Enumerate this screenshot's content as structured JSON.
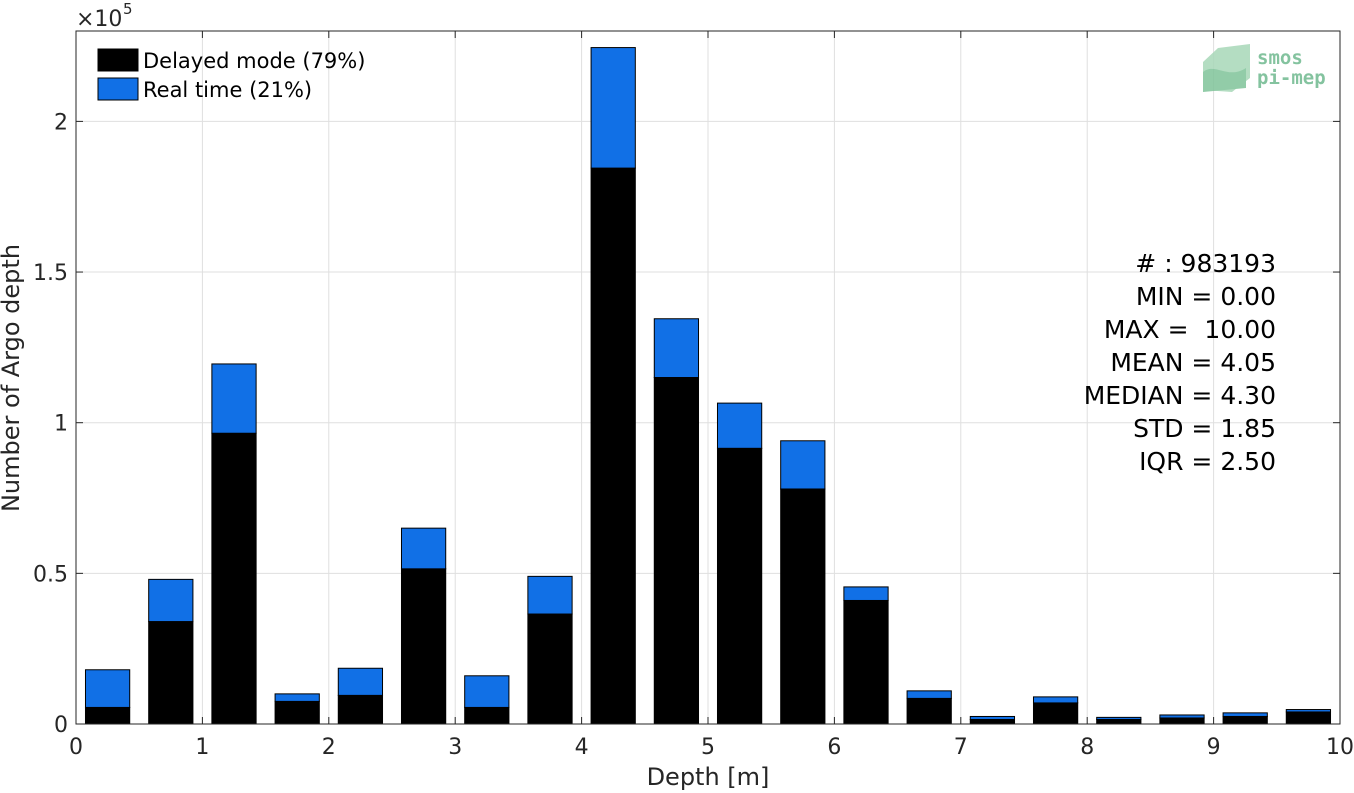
{
  "chart_data": {
    "type": "bar",
    "stacked": true,
    "x": [
      0.25,
      0.75,
      1.25,
      1.75,
      2.25,
      2.75,
      3.25,
      3.75,
      4.25,
      4.75,
      5.25,
      5.75,
      6.25,
      6.75,
      7.25,
      7.75,
      8.25,
      8.75,
      9.25,
      9.75
    ],
    "series": [
      {
        "name": "Delayed mode (79%)",
        "color": "#000000",
        "values": [
          5500,
          34000,
          96500,
          7500,
          9500,
          51500,
          5500,
          36500,
          184500,
          115000,
          91500,
          78000,
          41000,
          8500,
          1500,
          7000,
          1500,
          2000,
          2500,
          4000
        ]
      },
      {
        "name": "Real time (21%)",
        "color": "#1170e6",
        "values": [
          12500,
          14000,
          23000,
          2500,
          9000,
          13500,
          10500,
          12500,
          40000,
          19500,
          15000,
          16000,
          4500,
          2500,
          1000,
          2000,
          700,
          1000,
          1200,
          800
        ]
      }
    ],
    "xlabel": "Depth [m]",
    "ylabel": "Number of Argo depth",
    "xlim": [
      0,
      10
    ],
    "ylim": [
      0,
      230000
    ],
    "xticks": [
      "0",
      "1",
      "2",
      "3",
      "4",
      "5",
      "6",
      "7",
      "8",
      "9",
      "10"
    ],
    "yticks": [
      {
        "value": 0,
        "label": "0"
      },
      {
        "value": 50000,
        "label": "0.5"
      },
      {
        "value": 100000,
        "label": "1"
      },
      {
        "value": 150000,
        "label": "1.5"
      },
      {
        "value": 200000,
        "label": "2"
      }
    ],
    "y_multiplier": {
      "base": "×10",
      "exponent": "5"
    },
    "grid": true,
    "legend_position": "top-left",
    "stats": [
      "# : 983193",
      "MIN = 0.00",
      "MAX =  10.00",
      "MEAN = 4.05",
      "MEDIAN = 4.30",
      "STD = 1.85",
      "IQR = 2.50"
    ],
    "logo": {
      "line1": "smos",
      "line2": "pi-mep"
    }
  }
}
